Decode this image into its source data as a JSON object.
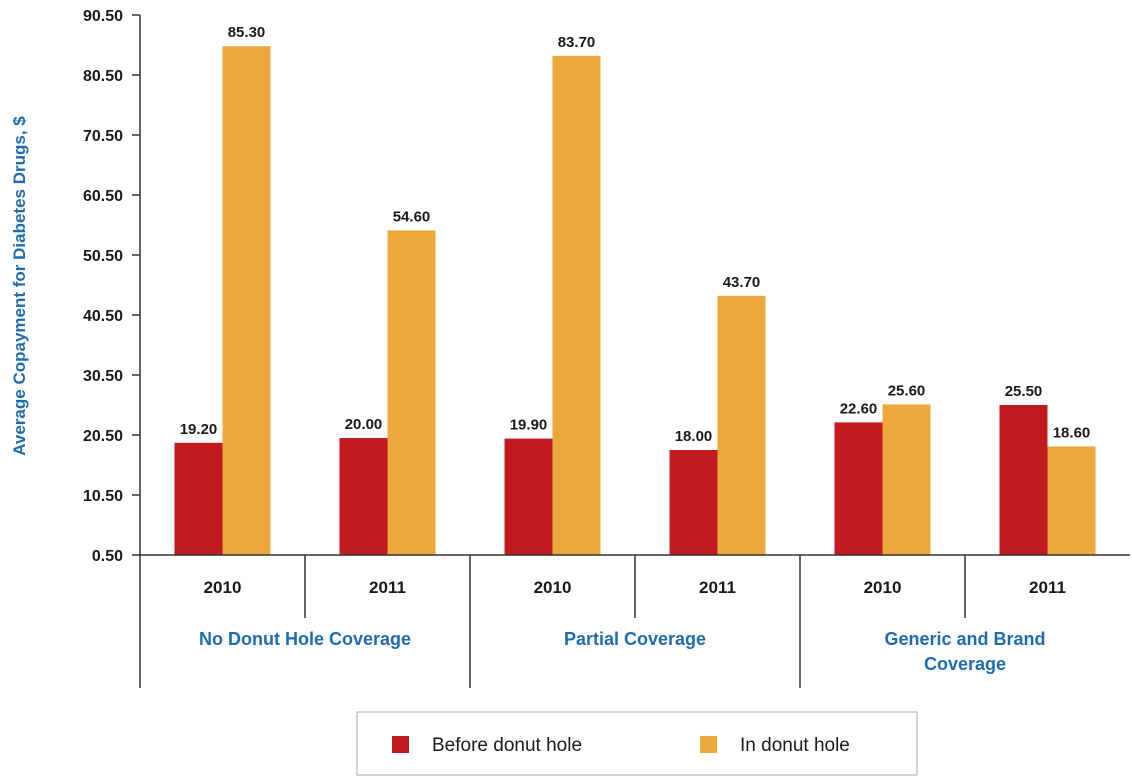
{
  "chart_data": {
    "type": "bar",
    "ylabel": "Average Copayment for Diabetes Drugs, $",
    "ylim": [
      0.5,
      90.5
    ],
    "yticks": [
      "90.50",
      "80.50",
      "70.50",
      "60.50",
      "50.50",
      "40.50",
      "30.50",
      "20.50",
      "10.50",
      "0.50"
    ],
    "groups": [
      {
        "label": "No Donut Hole Coverage",
        "label_lines": [
          "No Donut Hole Coverage"
        ],
        "categories": [
          "2010",
          "2011"
        ]
      },
      {
        "label": "Partial Coverage",
        "label_lines": [
          "Partial Coverage"
        ],
        "categories": [
          "2010",
          "2011"
        ]
      },
      {
        "label": "Generic and Brand Coverage",
        "label_lines": [
          "Generic and Brand",
          "Coverage"
        ],
        "categories": [
          "2010",
          "2011"
        ]
      }
    ],
    "series": [
      {
        "name": "Before donut hole",
        "color": "#c11b20",
        "values": [
          19.2,
          20.0,
          19.9,
          18.0,
          22.6,
          25.5
        ],
        "labels": [
          "19.20",
          "20.00",
          "19.90",
          "18.00",
          "22.60",
          "25.50"
        ]
      },
      {
        "name": "In donut hole",
        "color": "#eaa93a",
        "values": [
          85.3,
          54.6,
          83.7,
          43.7,
          25.6,
          18.6
        ],
        "labels": [
          "85.30",
          "54.60",
          "83.70",
          "43.70",
          "25.60",
          "18.60"
        ]
      }
    ],
    "legend_position": "bottom-center",
    "grid": false
  }
}
